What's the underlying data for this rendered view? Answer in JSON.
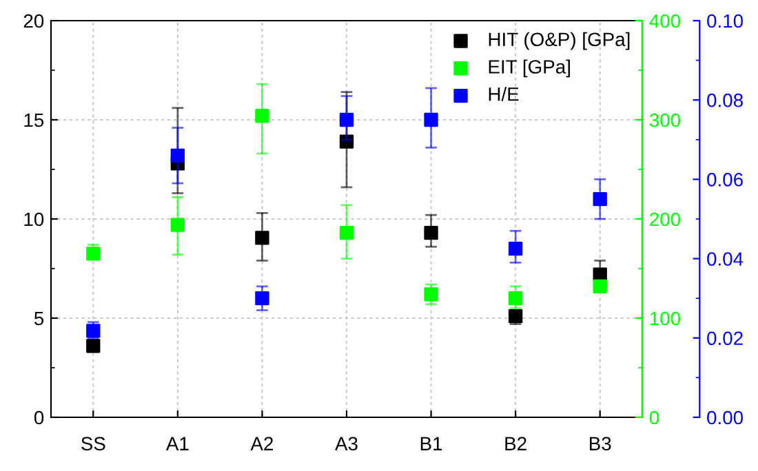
{
  "chart_data": {
    "type": "scatter",
    "categories": [
      "SS",
      "A1",
      "A2",
      "A3",
      "B1",
      "B2",
      "B3"
    ],
    "marker": "square",
    "grid": true,
    "legend": "top right",
    "ylim": [
      0,
      20
    ],
    "yticks": [
      0,
      5,
      10,
      15,
      20
    ],
    "y2lim": [
      0,
      400
    ],
    "y2ticks": [
      0,
      100,
      200,
      300,
      400
    ],
    "y3lim": [
      0,
      0.1
    ],
    "y3ticks": [
      {
        "value": 0,
        "label": "0.00"
      },
      {
        "value": 0.02,
        "label": "0.02"
      },
      {
        "value": 0.04,
        "label": "0.04"
      },
      {
        "value": 0.06,
        "label": "0.06"
      },
      {
        "value": 0.08,
        "label": "0.08"
      },
      {
        "value": 0.1,
        "label": "0.10"
      }
    ],
    "series": [
      {
        "name": "HIT (O&P) [GPa]",
        "color": "#000000",
        "values": [
          3.6,
          12.8,
          9.05,
          13.9,
          9.3,
          5.1,
          7.2
        ],
        "errors": [
          [
            3.3,
            3.9
          ],
          [
            11.3,
            15.6
          ],
          [
            7.9,
            10.3
          ],
          [
            11.6,
            16.4
          ],
          [
            8.6,
            10.2
          ],
          [
            4.7,
            5.4
          ],
          [
            7.2,
            7.9
          ]
        ]
      },
      {
        "name": "EIT [GPa]",
        "color": "#00ff00",
        "axis": "y2",
        "values": [
          165,
          194,
          304,
          186,
          124,
          120,
          132
        ],
        "errors": [
          [
            160,
            174
          ],
          [
            164,
            222
          ],
          [
            266,
            336
          ],
          [
            160,
            214
          ],
          [
            114,
            134
          ],
          [
            110,
            132
          ],
          [
            126,
            136
          ]
        ]
      },
      {
        "name": "H/E",
        "color": "#0000ff",
        "axis": "y3",
        "values": [
          0.0218,
          0.066,
          0.03,
          0.075,
          0.075,
          0.0425,
          0.055
        ],
        "errors": [
          [
            0.02,
            0.024
          ],
          [
            0.059,
            0.073
          ],
          [
            0.027,
            0.033
          ],
          [
            0.07,
            0.081
          ],
          [
            0.068,
            0.083
          ],
          [
            0.039,
            0.047
          ],
          [
            0.05,
            0.06
          ]
        ]
      }
    ]
  }
}
